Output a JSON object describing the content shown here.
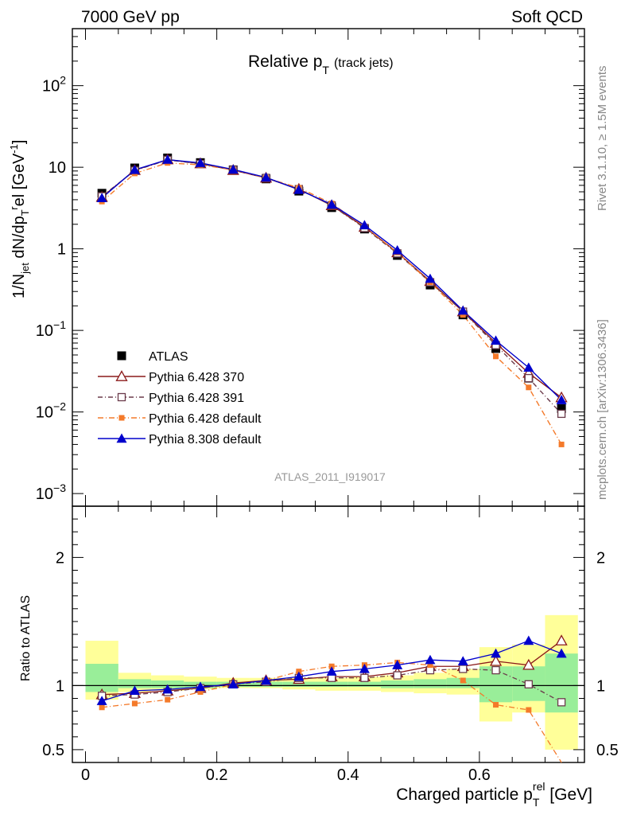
{
  "header": {
    "left": "7000 GeV pp",
    "right": "Soft QCD"
  },
  "side": {
    "rivet": "Rivet 3.1.10, ≥ 1.5M events",
    "mcplots": "mcplots.cern.ch [arXiv:1306.3436]"
  },
  "colors": {
    "atlas": "#000000",
    "p370": "#8b1a1a",
    "p391": "#6b3b4b",
    "pdef": "#f47a2a",
    "p8": "#0000cc",
    "band_outer": "#ffff99",
    "band_inner": "#99ee99",
    "watermark": "#999999",
    "side_text": "#888888"
  },
  "chart_data": [
    {
      "panel": "main",
      "type": "line",
      "title": "Relative p_T (track jets)",
      "title_main": "Relative p",
      "title_sub": "T",
      "title_tail": "(track jets)",
      "ylabel": "1/N_jet dN/dp_T^rel [GeV^-1]",
      "yscale": "log",
      "ylim": [
        0.0007,
        500
      ],
      "xlim": [
        -0.02,
        0.76
      ],
      "yticklabels": [
        "10^-3",
        "10^-2",
        "10^-1",
        "1",
        "10",
        "10^2"
      ],
      "watermark": "ATLAS_2011_I919017",
      "x": [
        0.025,
        0.075,
        0.125,
        0.175,
        0.225,
        0.275,
        0.325,
        0.375,
        0.425,
        0.475,
        0.525,
        0.575,
        0.625,
        0.675,
        0.725
      ],
      "series": [
        {
          "name": "ATLAS",
          "key": "atlas",
          "style": "data",
          "values": [
            4.8,
            9.8,
            13.0,
            11.4,
            9.3,
            7.2,
            5.1,
            3.2,
            1.75,
            0.83,
            0.36,
            0.155,
            0.06,
            0.026,
            0.011
          ]
        },
        {
          "name": "Pythia 6.428 370",
          "key": "p370",
          "style": "open-triangle",
          "values": [
            4.3,
            9.2,
            12.4,
            11.1,
            9.2,
            7.4,
            5.4,
            3.4,
            1.85,
            0.9,
            0.4,
            0.17,
            0.07,
            0.03,
            0.015
          ]
        },
        {
          "name": "Pythia 6.428 391",
          "key": "p391",
          "style": "open-square",
          "values": [
            4.4,
            9.1,
            12.3,
            11.0,
            9.3,
            7.4,
            5.4,
            3.4,
            1.8,
            0.88,
            0.39,
            0.17,
            0.066,
            0.026,
            0.0095
          ]
        },
        {
          "name": "Pythia 6.428 default",
          "key": "pdef",
          "style": "small-square",
          "values": [
            3.8,
            8.4,
            11.3,
            10.7,
            9.3,
            7.4,
            5.6,
            3.6,
            1.88,
            0.9,
            0.39,
            0.155,
            0.048,
            0.02,
            0.004
          ]
        },
        {
          "name": "Pythia 8.308 default",
          "key": "p8",
          "style": "filled-triangle",
          "values": [
            4.2,
            9.3,
            12.4,
            11.3,
            9.4,
            7.5,
            5.3,
            3.5,
            1.95,
            0.96,
            0.43,
            0.175,
            0.075,
            0.035,
            0.014
          ]
        }
      ]
    },
    {
      "panel": "ratio",
      "type": "line",
      "ylabel": "Ratio to ATLAS",
      "xlabel": "Charged particle p_T^rel [GeV]",
      "xlabel_main": "Charged particle p",
      "xlabel_sub": "T",
      "xlabel_sup": "rel",
      "xlabel_tail": " [GeV]",
      "ylim": [
        0.4,
        2.4
      ],
      "yticklabels": [
        "0.5",
        "1",
        "2"
      ],
      "xticklabels": [
        "0",
        "0.2",
        "0.4",
        "0.6"
      ],
      "x": [
        0.025,
        0.075,
        0.125,
        0.175,
        0.225,
        0.275,
        0.325,
        0.375,
        0.425,
        0.475,
        0.525,
        0.575,
        0.625,
        0.675,
        0.725
      ],
      "band_outer": {
        "lo": [
          0.89,
          0.95,
          0.96,
          0.97,
          0.98,
          0.98,
          0.97,
          0.96,
          0.96,
          0.95,
          0.94,
          0.93,
          0.72,
          0.79,
          0.5
        ],
        "hi": [
          1.35,
          1.1,
          1.08,
          1.07,
          1.06,
          1.06,
          1.06,
          1.06,
          1.07,
          1.08,
          1.1,
          1.13,
          1.3,
          1.32,
          1.55
        ]
      },
      "band_inner": {
        "lo": [
          0.95,
          0.98,
          0.98,
          0.98,
          0.99,
          0.99,
          0.99,
          0.99,
          0.99,
          0.98,
          0.98,
          0.98,
          0.87,
          0.88,
          0.79
        ],
        "hi": [
          1.17,
          1.05,
          1.04,
          1.03,
          1.03,
          1.03,
          1.03,
          1.03,
          1.03,
          1.04,
          1.05,
          1.06,
          1.15,
          1.15,
          1.25
        ]
      },
      "series": [
        {
          "name": "Pythia 6.428 370",
          "key": "p370",
          "style": "open-triangle",
          "values": [
            0.93,
            0.94,
            0.96,
            0.98,
            1.02,
            1.04,
            1.05,
            1.07,
            1.07,
            1.1,
            1.15,
            1.15,
            1.19,
            1.16,
            1.35
          ]
        },
        {
          "name": "Pythia 6.428 391",
          "key": "p391",
          "style": "open-square",
          "values": [
            0.92,
            0.93,
            0.95,
            0.98,
            1.01,
            1.03,
            1.06,
            1.06,
            1.06,
            1.08,
            1.12,
            1.13,
            1.12,
            1.01,
            0.87
          ]
        },
        {
          "name": "Pythia 6.428 default",
          "key": "pdef",
          "style": "small-square",
          "values": [
            0.83,
            0.86,
            0.89,
            0.95,
            1.01,
            1.04,
            1.11,
            1.15,
            1.16,
            1.18,
            1.16,
            1.04,
            0.85,
            0.81,
            0.36
          ]
        },
        {
          "name": "Pythia 8.308 default",
          "key": "p8",
          "style": "filled-triangle",
          "values": [
            0.88,
            0.96,
            0.97,
            0.99,
            1.01,
            1.04,
            1.07,
            1.11,
            1.13,
            1.16,
            1.2,
            1.19,
            1.25,
            1.35,
            1.25
          ]
        }
      ]
    }
  ]
}
